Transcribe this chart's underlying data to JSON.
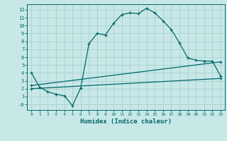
{
  "xlabel": "Humidex (Indice chaleur)",
  "bg_color": "#c8e8e8",
  "grid_color": "#a8d0d0",
  "line_color": "#006868",
  "xlim": [
    -0.5,
    23.5
  ],
  "ylim": [
    -0.7,
    12.7
  ],
  "xticks": [
    0,
    1,
    2,
    3,
    4,
    5,
    6,
    7,
    8,
    9,
    10,
    11,
    12,
    13,
    14,
    15,
    16,
    17,
    18,
    19,
    20,
    21,
    22,
    23
  ],
  "yticks": [
    0,
    1,
    2,
    3,
    4,
    5,
    6,
    7,
    8,
    9,
    10,
    11,
    12
  ],
  "ytick_labels": [
    "-0",
    "1",
    "2",
    "3",
    "4",
    "5",
    "6",
    "7",
    "8",
    "9",
    "10",
    "11",
    "12"
  ],
  "main_x": [
    0,
    1,
    2,
    3,
    4,
    5,
    6,
    7,
    8,
    9,
    10,
    11,
    12,
    13,
    14,
    15,
    16,
    17,
    18,
    19,
    20,
    21,
    22,
    23
  ],
  "main_y": [
    4.0,
    2.2,
    1.6,
    1.3,
    1.1,
    -0.15,
    2.1,
    7.7,
    9.0,
    8.8,
    10.3,
    11.4,
    11.6,
    11.5,
    12.2,
    11.6,
    10.6,
    9.5,
    7.8,
    5.9,
    5.6,
    5.5,
    5.5,
    3.6
  ],
  "line2_x": [
    0,
    23
  ],
  "line2_y": [
    2.0,
    3.3
  ],
  "line3_x": [
    0,
    23
  ],
  "line3_y": [
    2.4,
    5.4
  ]
}
